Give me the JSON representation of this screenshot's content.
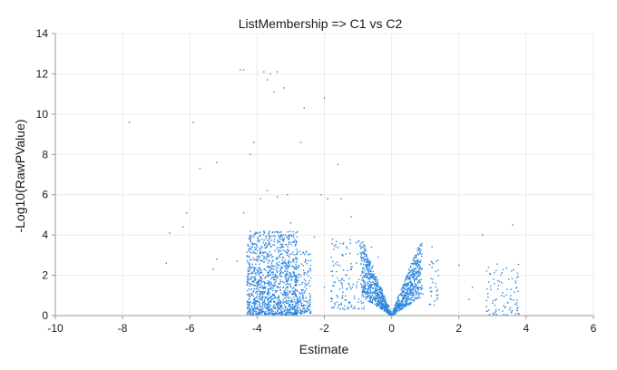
{
  "chart_data": {
    "type": "scatter",
    "title": "ListMembership => C1 vs C2",
    "xlabel": "Estimate",
    "ylabel": "-Log10(RawPValue)",
    "xlim": [
      -10,
      6
    ],
    "ylim": [
      0,
      14
    ],
    "x_ticks": [
      "-10",
      "-8",
      "-6",
      "-4",
      "-2",
      "0",
      "2",
      "4",
      "6"
    ],
    "y_ticks": [
      "0",
      "2",
      "4",
      "6",
      "8",
      "10",
      "12",
      "14"
    ],
    "grid": true,
    "legend": "none",
    "point_color": "#2e86de",
    "series": [
      {
        "points": [
          [
            -7.8,
            9.6
          ],
          [
            -6.6,
            4.1
          ],
          [
            -6.7,
            2.6
          ],
          [
            -6.2,
            4.4
          ],
          [
            -6.1,
            5.1
          ],
          [
            -5.9,
            9.6
          ],
          [
            -5.7,
            7.3
          ],
          [
            -5.3,
            2.3
          ],
          [
            -5.2,
            2.8
          ],
          [
            -5.2,
            7.6
          ],
          [
            -4.5,
            12.2
          ],
          [
            -4.4,
            12.2
          ],
          [
            -4.2,
            8.0
          ],
          [
            -4.1,
            8.6
          ],
          [
            -3.8,
            12.1
          ],
          [
            -3.7,
            11.7
          ],
          [
            -3.6,
            12.0
          ],
          [
            -3.5,
            11.1
          ],
          [
            -3.4,
            12.1
          ],
          [
            -3.2,
            11.3
          ],
          [
            -2.6,
            10.3
          ],
          [
            -2.7,
            8.6
          ],
          [
            -2.0,
            10.8
          ],
          [
            -1.6,
            7.5
          ],
          [
            -1.2,
            4.9
          ],
          [
            -1.9,
            5.8
          ],
          [
            -2.1,
            6.0
          ],
          [
            -1.5,
            5.8
          ],
          [
            -4.4,
            5.1
          ],
          [
            -4.6,
            2.7
          ],
          [
            -2.3,
            3.9
          ],
          [
            -3.0,
            4.6
          ],
          [
            -3.1,
            6.0
          ],
          [
            -3.4,
            5.9
          ],
          [
            -3.9,
            5.8
          ],
          [
            -3.7,
            6.2
          ],
          [
            3.6,
            4.5
          ],
          [
            2.7,
            4.0
          ],
          [
            1.2,
            3.4
          ],
          [
            2.0,
            2.5
          ],
          [
            2.4,
            1.4
          ],
          [
            2.3,
            0.8
          ],
          [
            -2.0,
            1.4
          ],
          [
            -1.6,
            0.9
          ],
          [
            -1.8,
            2.2
          ],
          [
            -0.9,
            3.6
          ],
          [
            -0.6,
            3.4
          ],
          [
            -0.4,
            2.9
          ]
        ]
      }
    ],
    "dense_clusters": [
      {
        "x": [
          -4.3,
          -2.8
        ],
        "y": [
          0.05,
          4.2
        ],
        "n": 1200
      },
      {
        "x": [
          -2.9,
          -2.4
        ],
        "y": [
          0.1,
          3.2
        ],
        "n": 180
      },
      {
        "x": [
          -1.8,
          -0.8
        ],
        "y": [
          0.3,
          3.8
        ],
        "n": 140
      },
      {
        "x": [
          1.1,
          1.4
        ],
        "y": [
          0.5,
          2.8
        ],
        "n": 30
      },
      {
        "x": [
          2.8,
          3.8
        ],
        "y": [
          0.05,
          2.6
        ],
        "n": 90
      }
    ],
    "v_shape": {
      "center_x": 0.0,
      "half_width": 0.9,
      "max_y": 3.8,
      "n": 1100
    }
  }
}
